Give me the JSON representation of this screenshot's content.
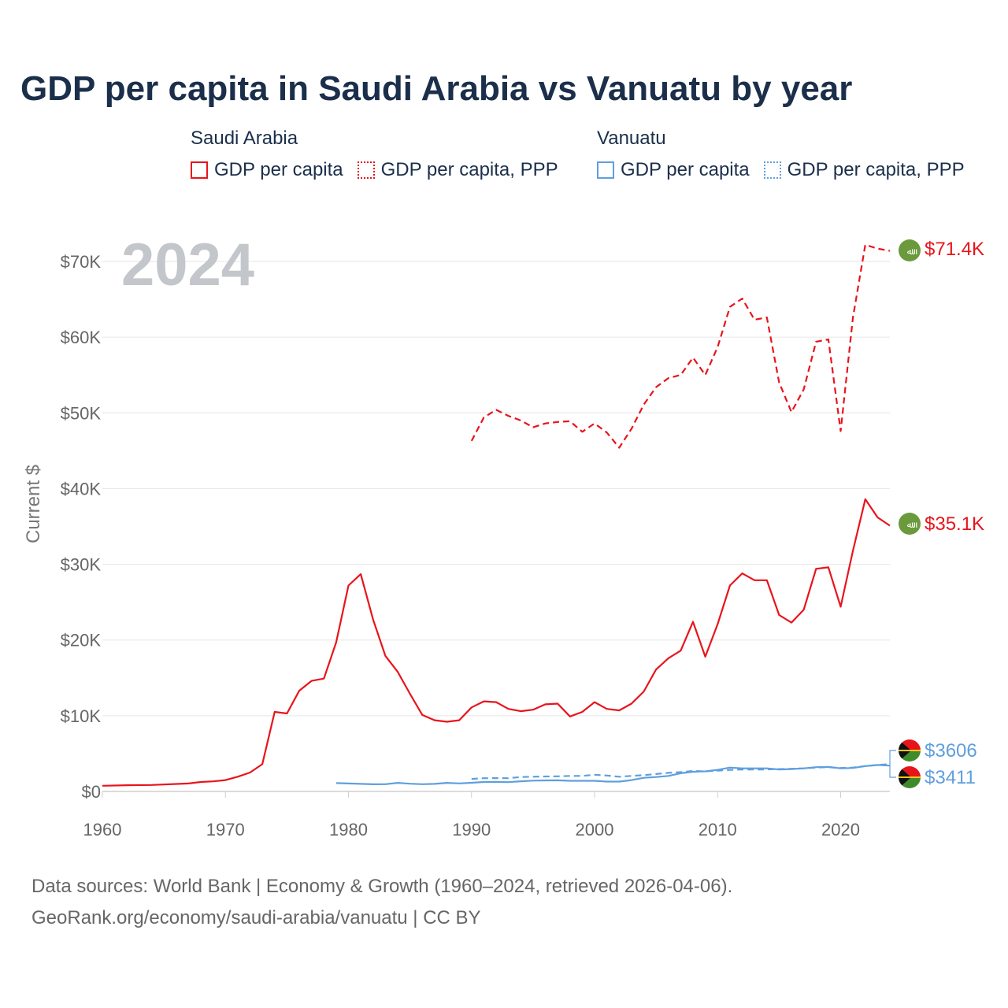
{
  "title": "GDP per capita in Saudi Arabia vs Vanuatu by year",
  "legend": {
    "groups": [
      {
        "name": "Saudi Arabia",
        "color": "#e8141c",
        "items": [
          {
            "label": "GDP per capita",
            "style": "solid"
          },
          {
            "label": "GDP per capita, PPP",
            "style": "dotted"
          }
        ]
      },
      {
        "name": "Vanuatu",
        "color": "#5f9fde",
        "items": [
          {
            "label": "GDP per capita",
            "style": "solid"
          },
          {
            "label": "GDP per capita, PPP",
            "style": "dotted"
          }
        ]
      }
    ]
  },
  "year_watermark": "2024",
  "source": {
    "line1": "Data sources: World Bank | Economy & Growth (1960–2024, retrieved 2026-04-06).",
    "line2": "GeoRank.org/economy/saudi-arabia/vanuatu | CC BY"
  },
  "chart_data": {
    "type": "line",
    "title": "GDP per capita in Saudi Arabia vs Vanuatu by year",
    "xlabel": "",
    "ylabel": "Current $",
    "xlim": [
      1960,
      2024
    ],
    "ylim": [
      0,
      70000
    ],
    "x_ticks": [
      1960,
      1970,
      1980,
      1990,
      2000,
      2010,
      2020
    ],
    "x_tick_labels": [
      "1960",
      "1970",
      "1980",
      "1990",
      "2000",
      "2010",
      "2020"
    ],
    "y_ticks": [
      0,
      10000,
      20000,
      30000,
      40000,
      50000,
      60000,
      70000
    ],
    "y_tick_labels": [
      "$0",
      "$10K",
      "$20K",
      "$30K",
      "$40K",
      "$50K",
      "$60K",
      "$70K"
    ],
    "grid": true,
    "series": [
      {
        "name": "Saudi Arabia GDP per capita",
        "color": "#e8141c",
        "dash": "solid",
        "end_label": "$35.1K",
        "points": [
          [
            1960,
            750
          ],
          [
            1962,
            820
          ],
          [
            1964,
            850
          ],
          [
            1967,
            1050
          ],
          [
            1968,
            1250
          ],
          [
            1969,
            1330
          ],
          [
            1970,
            1500
          ],
          [
            1971,
            1950
          ],
          [
            1972,
            2500
          ],
          [
            1973,
            3600
          ],
          [
            1974,
            10500
          ],
          [
            1975,
            10300
          ],
          [
            1976,
            13300
          ],
          [
            1977,
            14600
          ],
          [
            1978,
            14900
          ],
          [
            1979,
            19700
          ],
          [
            1980,
            27200
          ],
          [
            1981,
            28700
          ],
          [
            1982,
            22700
          ],
          [
            1983,
            17900
          ],
          [
            1984,
            15800
          ],
          [
            1985,
            12900
          ],
          [
            1986,
            10100
          ],
          [
            1987,
            9400
          ],
          [
            1988,
            9200
          ],
          [
            1989,
            9400
          ],
          [
            1990,
            11100
          ],
          [
            1991,
            11900
          ],
          [
            1992,
            11800
          ],
          [
            1993,
            10900
          ],
          [
            1994,
            10600
          ],
          [
            1995,
            10800
          ],
          [
            1996,
            11500
          ],
          [
            1997,
            11600
          ],
          [
            1998,
            9900
          ],
          [
            1999,
            10500
          ],
          [
            2000,
            11800
          ],
          [
            2001,
            10900
          ],
          [
            2002,
            10700
          ],
          [
            2003,
            11600
          ],
          [
            2004,
            13200
          ],
          [
            2005,
            16100
          ],
          [
            2006,
            17600
          ],
          [
            2007,
            18600
          ],
          [
            2008,
            22400
          ],
          [
            2009,
            17800
          ],
          [
            2010,
            22100
          ],
          [
            2011,
            27200
          ],
          [
            2012,
            28800
          ],
          [
            2013,
            27900
          ],
          [
            2014,
            27900
          ],
          [
            2015,
            23300
          ],
          [
            2016,
            22300
          ],
          [
            2017,
            24000
          ],
          [
            2018,
            29400
          ],
          [
            2019,
            29600
          ],
          [
            2020,
            24400
          ],
          [
            2021,
            31800
          ],
          [
            2022,
            38600
          ],
          [
            2023,
            36200
          ],
          [
            2024,
            35100
          ]
        ]
      },
      {
        "name": "Saudi Arabia GDP per capita, PPP",
        "color": "#e8141c",
        "dash": "dashed",
        "end_label": "$71.4K",
        "points": [
          [
            1990,
            46300
          ],
          [
            1991,
            49400
          ],
          [
            1992,
            50400
          ],
          [
            1993,
            49600
          ],
          [
            1994,
            49000
          ],
          [
            1995,
            48100
          ],
          [
            1996,
            48600
          ],
          [
            1997,
            48800
          ],
          [
            1998,
            48900
          ],
          [
            1999,
            47500
          ],
          [
            2000,
            48600
          ],
          [
            2001,
            47400
          ],
          [
            2002,
            45400
          ],
          [
            2003,
            47900
          ],
          [
            2004,
            51100
          ],
          [
            2005,
            53400
          ],
          [
            2006,
            54600
          ],
          [
            2007,
            55000
          ],
          [
            2008,
            57300
          ],
          [
            2009,
            55000
          ],
          [
            2010,
            58700
          ],
          [
            2011,
            64000
          ],
          [
            2012,
            65100
          ],
          [
            2013,
            62300
          ],
          [
            2014,
            62600
          ],
          [
            2015,
            54000
          ],
          [
            2016,
            50100
          ],
          [
            2017,
            53100
          ],
          [
            2018,
            59400
          ],
          [
            2019,
            59700
          ],
          [
            2020,
            47600
          ],
          [
            2021,
            62600
          ],
          [
            2022,
            72200
          ],
          [
            2023,
            71700
          ],
          [
            2024,
            71400
          ]
        ]
      },
      {
        "name": "Vanuatu GDP per capita",
        "color": "#5f9fde",
        "dash": "solid",
        "end_label": "$3411",
        "points": [
          [
            1979,
            1100
          ],
          [
            1980,
            1050
          ],
          [
            1981,
            1000
          ],
          [
            1982,
            950
          ],
          [
            1983,
            960
          ],
          [
            1984,
            1130
          ],
          [
            1985,
            1020
          ],
          [
            1986,
            960
          ],
          [
            1987,
            1000
          ],
          [
            1988,
            1130
          ],
          [
            1989,
            1060
          ],
          [
            1990,
            1140
          ],
          [
            1991,
            1250
          ],
          [
            1992,
            1260
          ],
          [
            1993,
            1230
          ],
          [
            1994,
            1340
          ],
          [
            1995,
            1420
          ],
          [
            1996,
            1460
          ],
          [
            1997,
            1470
          ],
          [
            1998,
            1400
          ],
          [
            1999,
            1400
          ],
          [
            2000,
            1400
          ],
          [
            2001,
            1300
          ],
          [
            2002,
            1300
          ],
          [
            2003,
            1500
          ],
          [
            2004,
            1800
          ],
          [
            2005,
            1900
          ],
          [
            2006,
            2050
          ],
          [
            2007,
            2400
          ],
          [
            2008,
            2600
          ],
          [
            2009,
            2650
          ],
          [
            2010,
            2850
          ],
          [
            2011,
            3150
          ],
          [
            2012,
            3050
          ],
          [
            2013,
            3050
          ],
          [
            2014,
            3050
          ],
          [
            2015,
            2900
          ],
          [
            2016,
            2950
          ],
          [
            2017,
            3050
          ],
          [
            2018,
            3200
          ],
          [
            2019,
            3250
          ],
          [
            2020,
            3050
          ],
          [
            2021,
            3100
          ],
          [
            2022,
            3350
          ],
          [
            2023,
            3500
          ],
          [
            2024,
            3411
          ]
        ]
      },
      {
        "name": "Vanuatu GDP per capita, PPP",
        "color": "#5f9fde",
        "dash": "dashed",
        "end_label": "$3606",
        "points": [
          [
            1990,
            1650
          ],
          [
            1991,
            1750
          ],
          [
            1992,
            1760
          ],
          [
            1993,
            1750
          ],
          [
            1994,
            1900
          ],
          [
            1995,
            1950
          ],
          [
            1996,
            1980
          ],
          [
            1997,
            2000
          ],
          [
            1998,
            2050
          ],
          [
            1999,
            2050
          ],
          [
            2000,
            2200
          ],
          [
            2001,
            2100
          ],
          [
            2002,
            1950
          ],
          [
            2003,
            2050
          ],
          [
            2004,
            2150
          ],
          [
            2005,
            2300
          ],
          [
            2006,
            2450
          ],
          [
            2007,
            2550
          ],
          [
            2008,
            2700
          ],
          [
            2009,
            2650
          ],
          [
            2010,
            2750
          ],
          [
            2011,
            2850
          ],
          [
            2012,
            2900
          ],
          [
            2013,
            2900
          ],
          [
            2014,
            2900
          ],
          [
            2015,
            2950
          ],
          [
            2016,
            3000
          ],
          [
            2017,
            3050
          ],
          [
            2018,
            3150
          ],
          [
            2019,
            3200
          ],
          [
            2020,
            3100
          ],
          [
            2021,
            3150
          ],
          [
            2022,
            3350
          ],
          [
            2023,
            3500
          ],
          [
            2024,
            3606
          ]
        ]
      }
    ]
  }
}
